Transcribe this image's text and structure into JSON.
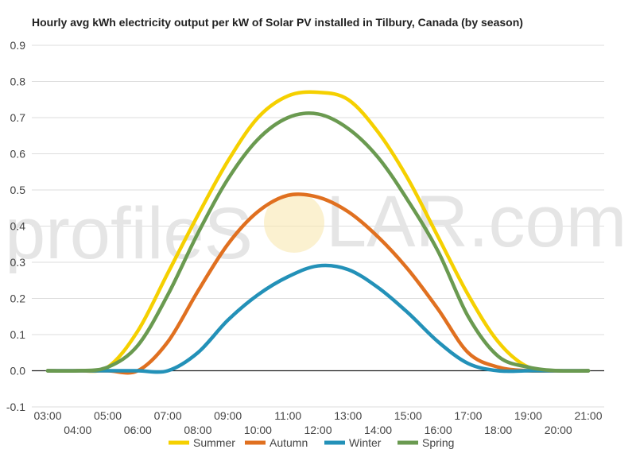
{
  "chart_data": {
    "type": "line",
    "title": "Hourly avg kWh electricity output per kW of Solar PV installed in Tilbury, Canada (by season)",
    "xlabel": "",
    "ylabel": "",
    "x": [
      "03:00",
      "04:00",
      "05:00",
      "06:00",
      "07:00",
      "08:00",
      "09:00",
      "10:00",
      "11:00",
      "12:00",
      "13:00",
      "14:00",
      "15:00",
      "16:00",
      "17:00",
      "18:00",
      "19:00",
      "20:00",
      "21:00"
    ],
    "x_tick_labels_upper": [
      "03:00",
      "05:00",
      "07:00",
      "09:00",
      "11:00",
      "13:00",
      "15:00",
      "17:00",
      "19:00",
      "21:00"
    ],
    "x_tick_labels_lower": [
      "04:00",
      "06:00",
      "08:00",
      "10:00",
      "12:00",
      "14:00",
      "16:00",
      "18:00",
      "20:00"
    ],
    "ylim": [
      -0.1,
      0.9
    ],
    "y_ticks": [
      -0.1,
      0.0,
      0.1,
      0.2,
      0.3,
      0.4,
      0.5,
      0.6,
      0.7,
      0.8,
      0.9
    ],
    "y_tick_labels": [
      "-0.1",
      "0.0",
      "0.1",
      "0.2",
      "0.3",
      "0.4",
      "0.5",
      "0.6",
      "0.7",
      "0.8",
      "0.9"
    ],
    "grid": true,
    "legend_position": "bottom",
    "series": [
      {
        "name": "Summer",
        "color": "#f5d000",
        "values": [
          0.0,
          0.0,
          0.01,
          0.11,
          0.27,
          0.43,
          0.58,
          0.7,
          0.76,
          0.77,
          0.75,
          0.66,
          0.53,
          0.37,
          0.21,
          0.08,
          0.01,
          0.0,
          0.0
        ]
      },
      {
        "name": "Autumn",
        "color": "#e07020",
        "values": [
          0.0,
          0.0,
          0.0,
          0.0,
          0.08,
          0.22,
          0.35,
          0.44,
          0.485,
          0.48,
          0.44,
          0.37,
          0.28,
          0.17,
          0.05,
          0.01,
          0.0,
          0.0,
          0.0
        ]
      },
      {
        "name": "Winter",
        "color": "#2391b8",
        "values": [
          0.0,
          0.0,
          0.0,
          0.0,
          0.0,
          0.05,
          0.14,
          0.21,
          0.26,
          0.29,
          0.28,
          0.23,
          0.16,
          0.08,
          0.02,
          0.0,
          0.0,
          0.0,
          0.0
        ]
      },
      {
        "name": "Spring",
        "color": "#6a9a50",
        "values": [
          0.0,
          0.0,
          0.01,
          0.07,
          0.21,
          0.38,
          0.53,
          0.64,
          0.7,
          0.71,
          0.67,
          0.59,
          0.47,
          0.33,
          0.15,
          0.04,
          0.01,
          0.0,
          0.0
        ]
      }
    ]
  },
  "watermark": {
    "text_left": "profileS",
    "text_right": "LAR.com"
  }
}
